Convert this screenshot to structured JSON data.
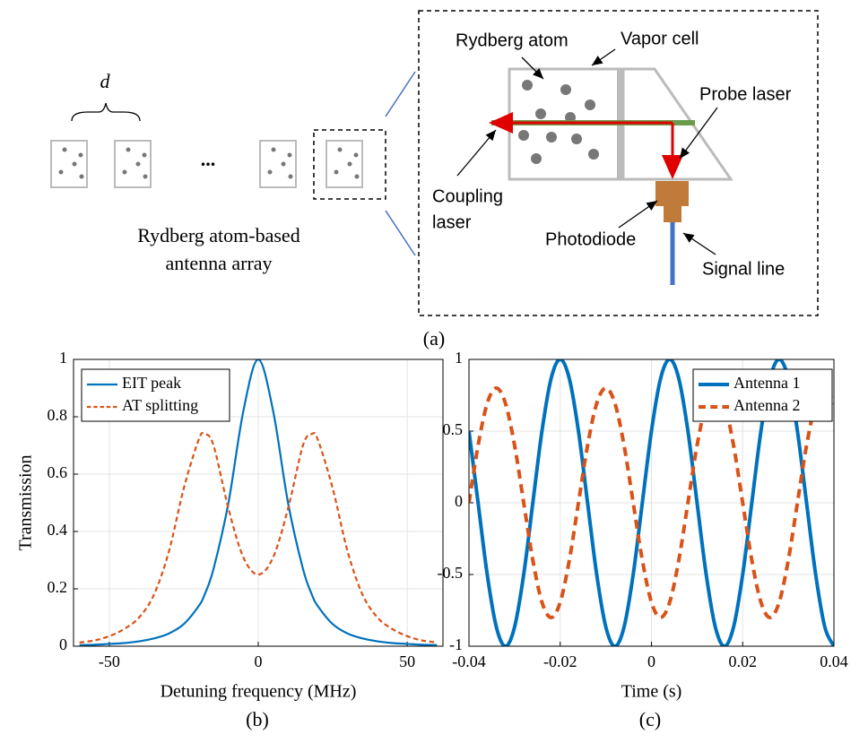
{
  "diagram": {
    "spacing": "d",
    "ellipsis": "...",
    "array_label": [
      "Rydberg atom-based",
      "antenna array"
    ],
    "atom": "Rydberg atom",
    "cell": "Vapor cell",
    "probe": "Probe laser",
    "coupling": [
      "Coupling",
      "laser"
    ],
    "photodiode": "Photodiode",
    "signal": "Signal line"
  },
  "labels": {
    "a": "(a)",
    "b": "(b)",
    "c": "(c)"
  },
  "chart_data": [
    {
      "type": "line",
      "xlabel": "Detuning frequency (MHz)",
      "ylabel": "Transmission",
      "x": [
        -60,
        -55,
        -50,
        -45,
        -40,
        -35,
        -30,
        -25,
        -20,
        -18,
        -15,
        -10,
        -5,
        0,
        5,
        10,
        15,
        18,
        20,
        25,
        30,
        35,
        40,
        45,
        50,
        55,
        60
      ],
      "series": [
        {
          "name": "EIT peak",
          "color": "#0072BD",
          "linestyle": "solid",
          "values": [
            0.004,
            0.005,
            0.008,
            0.011,
            0.017,
            0.027,
            0.044,
            0.077,
            0.14,
            0.18,
            0.27,
            0.5,
            0.82,
            1,
            0.82,
            0.5,
            0.27,
            0.18,
            0.14,
            0.077,
            0.044,
            0.027,
            0.017,
            0.011,
            0.008,
            0.005,
            0.004
          ]
        },
        {
          "name": "AT splitting",
          "color": "#D95319",
          "linestyle": "dashed",
          "values": [
            0.013,
            0.02,
            0.035,
            0.06,
            0.1,
            0.18,
            0.33,
            0.55,
            0.72,
            0.74,
            0.7,
            0.48,
            0.31,
            0.25,
            0.31,
            0.48,
            0.7,
            0.74,
            0.72,
            0.55,
            0.33,
            0.18,
            0.1,
            0.06,
            0.035,
            0.02,
            0.013
          ]
        }
      ],
      "xlim": [
        -62,
        62
      ],
      "ylim": [
        0,
        1
      ],
      "xticks": [
        -50,
        0,
        50
      ],
      "yticks": [
        0,
        0.2,
        0.4,
        0.6,
        0.8,
        1
      ],
      "grid": true,
      "legend": "upper left"
    },
    {
      "type": "line",
      "xlabel": "Time (s)",
      "x": [
        -0.04,
        -0.038,
        -0.036,
        -0.034,
        -0.032,
        -0.03,
        -0.028,
        -0.026,
        -0.024,
        -0.022,
        -0.02,
        -0.018,
        -0.016,
        -0.014,
        -0.012,
        -0.01,
        -0.008,
        -0.006,
        -0.004,
        -0.002,
        0,
        0.002,
        0.004,
        0.006,
        0.008,
        0.01,
        0.012,
        0.014,
        0.016,
        0.018,
        0.02,
        0.022,
        0.024,
        0.026,
        0.028,
        0.03,
        0.032,
        0.034,
        0.036,
        0.038,
        0.04
      ],
      "series": [
        {
          "name": "Antenna 1",
          "color": "#0072BD",
          "linestyle": "solid",
          "values": [
            0.5,
            0,
            -0.5,
            -0.866,
            -1,
            -0.866,
            -0.5,
            0,
            0.5,
            0.866,
            1,
            0.866,
            0.5,
            0,
            -0.5,
            -0.866,
            -1,
            -0.866,
            -0.5,
            0,
            0.5,
            0.866,
            1,
            0.866,
            0.5,
            0,
            -0.5,
            -0.866,
            -1,
            -0.866,
            -0.5,
            0,
            0.5,
            0.866,
            1,
            0.866,
            0.5,
            0,
            -0.5,
            -0.866,
            -1
          ]
        },
        {
          "name": "Antenna 2",
          "color": "#D95319",
          "linestyle": "dashed",
          "values": [
            0,
            0.4,
            0.693,
            0.8,
            0.693,
            0.4,
            0,
            -0.4,
            -0.693,
            -0.8,
            -0.693,
            -0.4,
            0,
            0.4,
            0.693,
            0.8,
            0.693,
            0.4,
            0,
            -0.4,
            -0.693,
            -0.8,
            -0.693,
            -0.4,
            0,
            0.4,
            0.693,
            0.8,
            0.693,
            0.4,
            0,
            -0.4,
            -0.693,
            -0.8,
            -0.693,
            -0.4,
            0,
            0.4,
            0.693,
            0.8,
            0.693
          ]
        }
      ],
      "xlim": [
        -0.04,
        0.04
      ],
      "ylim": [
        -1,
        1
      ],
      "xticks": [
        -0.04,
        -0.02,
        0,
        0.02,
        0.04
      ],
      "yticks": [
        -1,
        -0.5,
        0,
        0.5,
        1
      ],
      "grid": true,
      "legend": "upper right"
    }
  ]
}
